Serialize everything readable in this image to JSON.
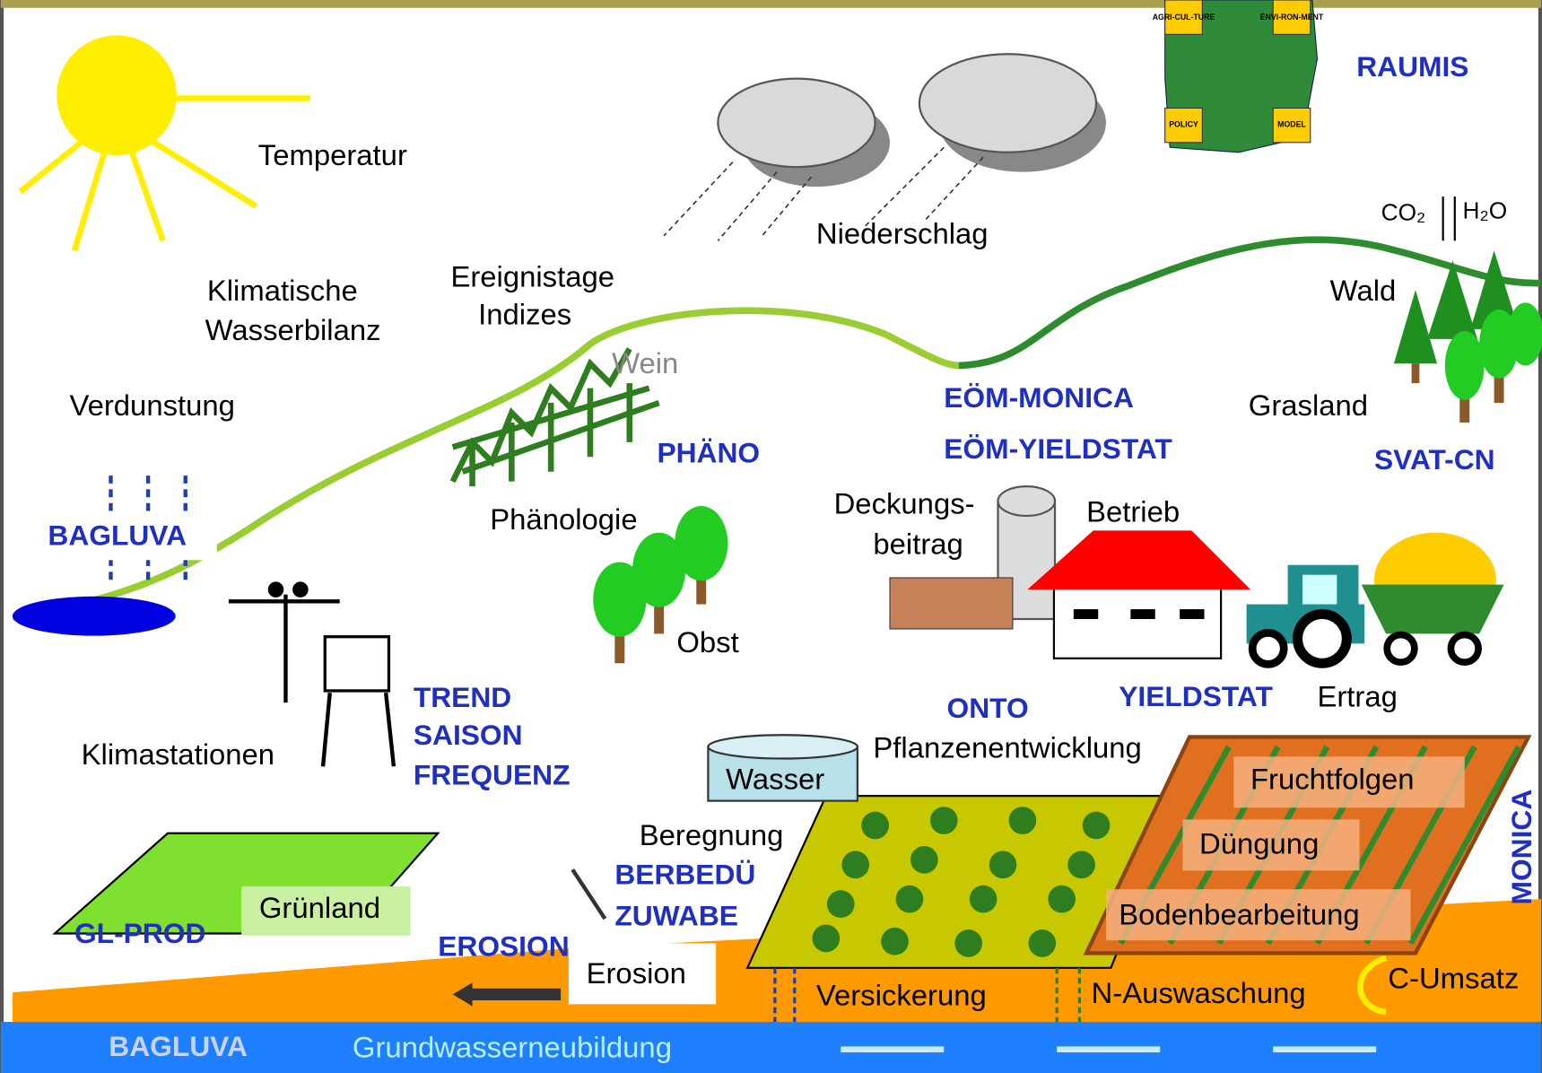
{
  "climate": {
    "temperature": "Temperatur",
    "precipitation": "Niederschlag",
    "water_balance": [
      "Klimatische",
      "Wasserbilanz"
    ],
    "event_days": [
      "Ereignistage",
      "Indizes"
    ],
    "evaporation": "Verdunstung",
    "stations": "Klimastationen",
    "bagluva": "BAGLUVA",
    "trend_models": [
      "TREND",
      "SAISON",
      "FREQUENZ"
    ]
  },
  "phenology": {
    "wine": "Wein",
    "model": "PHÄNO",
    "label": "Phänologie",
    "fruit": "Obst"
  },
  "economy": {
    "models": [
      "EÖM-MONICA",
      "EÖM-YIELDSTAT"
    ],
    "margin": [
      "Deckungs-",
      "beitrag"
    ],
    "farm": "Betrieb",
    "yieldstat": "YIELDSTAT",
    "yield": "Ertrag"
  },
  "raumis": {
    "title": "RAUMIS",
    "boxes": [
      "AGRI-CUL-TURE",
      "ENVI-RON-MENT",
      "POLICY",
      "MODEL"
    ]
  },
  "forest": {
    "co2": "CO₂",
    "h2o": "H₂O",
    "forest": "Wald",
    "grassland": "Grasland",
    "model": "SVAT-CN"
  },
  "crop": {
    "onto": "ONTO",
    "development": "Pflanzenentwicklung",
    "water": "Wasser",
    "irrigation": "Beregnung",
    "irrigation_models": [
      "BERBEDÜ",
      "ZUWABE"
    ],
    "rotations": "Fruchtfolgen",
    "fertilization": "Düngung",
    "tillage": "Bodenbearbeitung",
    "monica": "MONICA"
  },
  "soil": {
    "grassland": "Grünland",
    "gl_prod": "GL-PROD",
    "erosion_model": "EROSION",
    "erosion": "Erosion",
    "seepage": "Versickerung",
    "leaching": "N-Auswaschung",
    "carbon": "C-Umsatz"
  },
  "groundwater": {
    "model": "BAGLUVA",
    "recharge": "Grundwasserneubildung"
  }
}
